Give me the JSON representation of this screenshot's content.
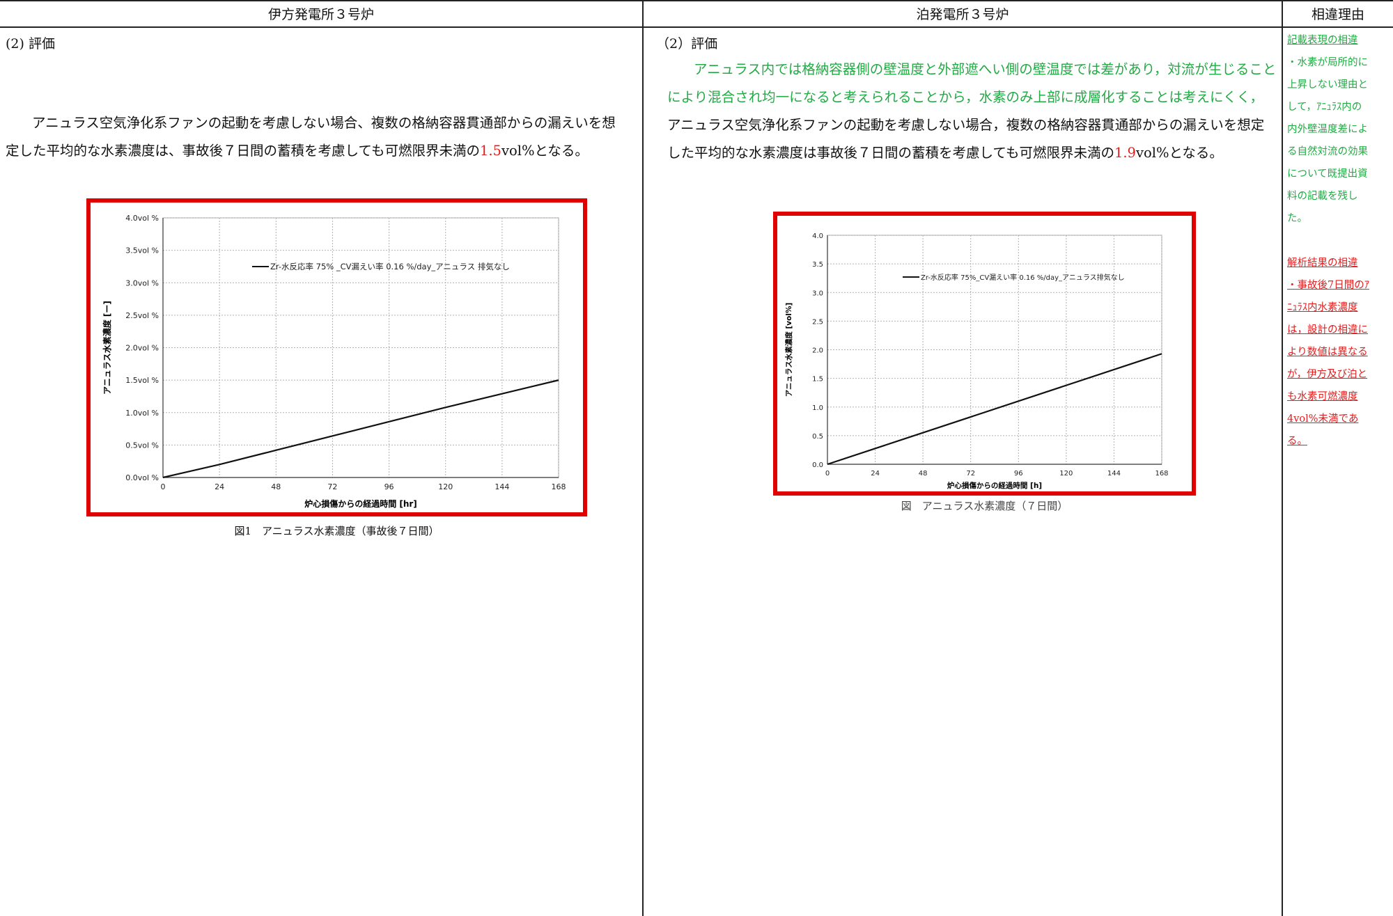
{
  "headers": {
    "left": "伊方発電所３号炉",
    "middle": "泊発電所３号炉",
    "right": "相違理由"
  },
  "left": {
    "section": "(2) 評価",
    "para_line1": "アニュラス空気浄化系ファンの起動を考慮しない場合、複数の格納容器貫通部からの漏えいを想",
    "para_line2_a": "定した平均的な水素濃度は、事故後７日間の蓄積を考慮しても可燃限界未満の",
    "para_line2_value": "1.5",
    "para_line2_b": "vol%となる。",
    "caption": "図1　アニュラス水素濃度（事故後７日間）"
  },
  "middle": {
    "section": "（2）評価",
    "green_line1": "アニュラス内では格納容器側の壁温度と外部遮へい側の壁温度では差があり，対流が生じること",
    "green_line2": "により混合され均一になると考えられることから，水素のみ上部に成層化することは考えにくく，",
    "para_line3": "アニュラス空気浄化系ファンの起動を考慮しない場合，複数の格納容器貫通部からの漏えいを想定",
    "para_line4_a": "した平均的な水素濃度は事故後７日間の蓄積を考慮しても可燃限界未満の",
    "para_line4_value": "1.9",
    "para_line4_b": "vol%となる。",
    "caption": "図　アニュラス水素濃度（７日間）"
  },
  "right": {
    "green_title": "記載表現の相違",
    "green_lines": [
      "・水素が局所的に",
      "上昇しない理由と",
      "して，ｱﾆｭﾗｽ内の",
      "内外壁温度差によ",
      "る自然対流の効果",
      "について既提出資",
      "料の記載を残し",
      "た。"
    ],
    "red_title": "解析結果の相違",
    "red_lines": [
      "・事故後7日間のｱ",
      "ﾆｭﾗｽ内水素濃度",
      "は，設計の相違に",
      "より数値は異なる",
      "が，伊方及び泊と",
      "も水素可燃濃度",
      "4vol%未満であ",
      "る。"
    ]
  },
  "chart_data": [
    {
      "type": "line",
      "xlabel": "炉心損傷からの経過時間 [hr]",
      "ylabel": "アニュラス水素濃度 [ー]",
      "x_ticks": [
        "0",
        "24",
        "48",
        "72",
        "96",
        "120",
        "144",
        "168"
      ],
      "y_ticks": [
        "0.0vol %",
        "0.5vol %",
        "1.0vol %",
        "1.5vol %",
        "2.0vol %",
        "2.5vol %",
        "3.0vol %",
        "3.5vol %",
        "4.0vol %"
      ],
      "xlim": [
        0,
        168
      ],
      "ylim": [
        0,
        4.0
      ],
      "grid": true,
      "legend_position": "top-right",
      "series": [
        {
          "name": "Zr-水反応率 75% _CV漏えい率 0.16 %/day_アニュラス 排気なし",
          "x": [
            0,
            24,
            48,
            72,
            96,
            120,
            144,
            168
          ],
          "y": [
            0,
            0.2,
            0.42,
            0.64,
            0.86,
            1.08,
            1.29,
            1.5
          ],
          "color": "#111111"
        }
      ]
    },
    {
      "type": "line",
      "xlabel": "炉心損傷からの経過時間 [h]",
      "ylabel": "アニュラス水素濃度 [vol%]",
      "x_ticks": [
        "0",
        "24",
        "48",
        "72",
        "96",
        "120",
        "144",
        "168"
      ],
      "y_ticks": [
        "0.0",
        "0.5",
        "1.0",
        "1.5",
        "2.0",
        "2.5",
        "3.0",
        "3.5",
        "4.0"
      ],
      "xlim": [
        0,
        168
      ],
      "ylim": [
        0,
        4.0
      ],
      "grid": true,
      "legend_position": "top-right",
      "series": [
        {
          "name": "Zr-水反応率 75%_CV漏えい率 0.16 %/day_アニュラス排気なし",
          "x": [
            0,
            168
          ],
          "y": [
            0,
            1.93
          ],
          "color": "#111111"
        }
      ]
    }
  ]
}
